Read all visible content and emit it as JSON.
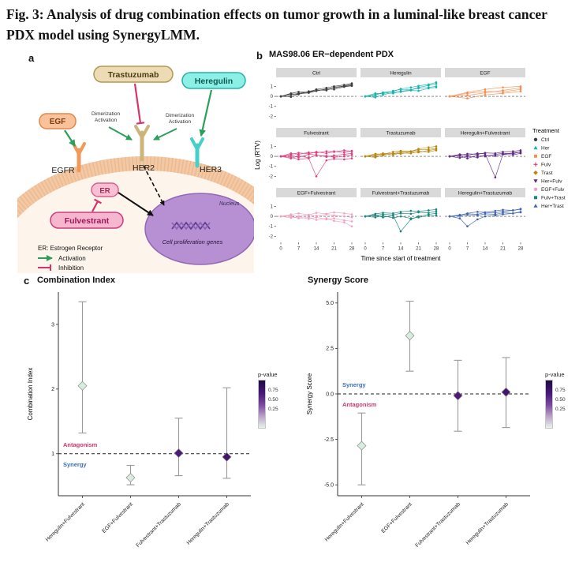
{
  "caption": "Fig. 3: Analysis of drug combination effects on tumor growth in a luminal-like breast cancer PDX model using SynergyLMM.",
  "panels": {
    "a_label": "a",
    "b_label": "b",
    "c_label": "c"
  },
  "panel_a": {
    "ligands": {
      "egf": "EGF",
      "trastuzumab": "Trastuzumab",
      "heregulin": "Heregulin",
      "er": "ER",
      "fulvestrant": "Fulvestrant"
    },
    "receptors": {
      "egfr": "EGFR",
      "her2": "HER2",
      "her3": "HER3"
    },
    "dimerization": "Dimerization",
    "activation": "Activation",
    "nucleus": "Nucleus",
    "genes": "Cell proliferation genes",
    "legend": {
      "er": "ER: Estrogen Receptor",
      "activation": "Activation",
      "inhibition": "Inhibition"
    }
  },
  "pvalue_legend": {
    "title": "p-value",
    "ticks": [
      "0.75",
      "0.50",
      "0.25"
    ],
    "gradient": [
      "#1f0a45",
      "#4a1a78",
      "#7c4ba0",
      "#b9a0ca",
      "#e8f3e9"
    ]
  },
  "chart_data": [
    {
      "type": "line",
      "title": "MAS98.06 ER−dependent PDX",
      "xlabel": "Time since start of treatment",
      "ylabel": "Log (RTV)",
      "xlim": [
        0,
        28
      ],
      "ylim": [
        -2.6,
        1.9
      ],
      "x_ticks": [
        0,
        7,
        14,
        21,
        28
      ],
      "y_ticks": [
        -2,
        -1,
        0,
        1
      ],
      "legend_title": "Treatment",
      "legend_items": [
        {
          "label": "Ctrl",
          "color": "#3d3d3d",
          "shape": "circle"
        },
        {
          "label": "Her",
          "color": "#12b5ae",
          "shape": "triangle"
        },
        {
          "label": "EGF",
          "color": "#f59053",
          "shape": "square"
        },
        {
          "label": "Fulv",
          "color": "#e23d7f",
          "shape": "plus"
        },
        {
          "label": "Trast",
          "color": "#b8860b",
          "shape": "diamond"
        },
        {
          "label": "Her+Fulv",
          "color": "#5f2a84",
          "shape": "triangle-down"
        },
        {
          "label": "EGF+Fulv",
          "color": "#f4a0c0",
          "shape": "circle"
        },
        {
          "label": "Fulv+Trast",
          "color": "#17877b",
          "shape": "square"
        },
        {
          "label": "Her+Trast",
          "color": "#3e66b0",
          "shape": "triangle"
        }
      ],
      "facets": [
        {
          "name": "Ctrl",
          "color": "#3d3d3d",
          "x": [
            0,
            4,
            7,
            11,
            14,
            18,
            21,
            25,
            28
          ],
          "series": [
            [
              0,
              0.15,
              0.3,
              0.45,
              0.55,
              0.7,
              0.85,
              1.0,
              1.1
            ],
            [
              0,
              0.25,
              0.2,
              0.5,
              0.65,
              0.6,
              0.9,
              1.05,
              1.2
            ],
            [
              0,
              -0.05,
              0.25,
              0.35,
              0.55,
              0.75,
              0.7,
              0.95,
              1.05
            ],
            [
              0,
              0.3,
              0.45,
              0.4,
              0.7,
              0.85,
              1.0,
              1.15,
              1.3
            ]
          ]
        },
        {
          "name": "Heregulin",
          "color": "#12b5ae",
          "x": [
            0,
            4,
            7,
            11,
            14,
            18,
            21,
            25,
            28
          ],
          "series": [
            [
              0,
              0.2,
              0.35,
              0.3,
              0.5,
              0.65,
              0.8,
              0.9,
              1.0
            ],
            [
              0,
              -0.1,
              0.15,
              0.4,
              0.45,
              0.6,
              0.55,
              0.8,
              0.9
            ],
            [
              0,
              0.3,
              0.25,
              0.55,
              0.7,
              0.65,
              0.9,
              1.1,
              1.25
            ],
            [
              0,
              0.1,
              0.4,
              0.5,
              0.75,
              0.9,
              1.05,
              1.2,
              1.4
            ]
          ]
        },
        {
          "name": "EGF",
          "color": "#f59053",
          "x": [
            0,
            7,
            14,
            21,
            28
          ],
          "series": [
            [
              0,
              0.3,
              0.5,
              0.45,
              0.7
            ],
            [
              0,
              0.1,
              0.35,
              0.6,
              0.85
            ],
            [
              0,
              -0.2,
              0.15,
              0.3,
              0.5
            ],
            [
              0,
              0.4,
              0.7,
              0.9,
              1.0
            ]
          ]
        },
        {
          "name": "Fulvestrant",
          "color": "#e23d7f",
          "x": [
            0,
            4,
            7,
            11,
            14,
            18,
            21,
            25,
            28
          ],
          "series": [
            [
              0,
              0.1,
              -0.1,
              0.2,
              0.15,
              -0.05,
              0.1,
              0.2,
              0.3
            ],
            [
              0,
              -0.2,
              0.05,
              -0.15,
              0.1,
              0.05,
              -0.1,
              0.0,
              0.15
            ],
            [
              0,
              0.3,
              0.2,
              0.4,
              0.35,
              0.5,
              0.45,
              0.6,
              0.5
            ],
            [
              0,
              -0.1,
              -0.3,
              -0.2,
              -2.0,
              -0.4,
              -0.25,
              -0.3,
              -0.2
            ],
            [
              0,
              0.2,
              0.35,
              0.25,
              0.45,
              0.3,
              0.5,
              0.4,
              0.55
            ]
          ]
        },
        {
          "name": "Trastuzumab",
          "color": "#b8860b",
          "x": [
            0,
            4,
            7,
            11,
            14,
            18,
            21,
            25,
            28
          ],
          "series": [
            [
              0,
              0.15,
              0.3,
              0.25,
              0.45,
              0.5,
              0.65,
              0.7,
              0.8
            ],
            [
              0,
              -0.1,
              0.1,
              0.3,
              0.25,
              0.45,
              0.4,
              0.6,
              0.7
            ],
            [
              0,
              0.25,
              0.2,
              0.45,
              0.55,
              0.5,
              0.75,
              0.9,
              1.0
            ],
            [
              0,
              0.05,
              0.2,
              0.15,
              0.35,
              0.3,
              0.5,
              0.45,
              0.6
            ]
          ]
        },
        {
          "name": "Heregulin+Fulvestrant",
          "color": "#5f2a84",
          "x": [
            0,
            4,
            7,
            11,
            14,
            18,
            21,
            25,
            28
          ],
          "series": [
            [
              0,
              0.1,
              0.25,
              0.2,
              0.35,
              0.3,
              0.45,
              0.5,
              0.6
            ],
            [
              0,
              -0.15,
              0.0,
              -0.1,
              0.1,
              0.05,
              0.2,
              0.15,
              0.3
            ],
            [
              0,
              0.2,
              0.1,
              0.3,
              0.25,
              -2.1,
              0.2,
              0.35,
              0.4
            ],
            [
              0,
              0.05,
              -0.2,
              0.1,
              0.0,
              0.2,
              0.3,
              0.25,
              0.45
            ]
          ]
        },
        {
          "name": "EGF+Fulvestrant",
          "color": "#f4a0c0",
          "x": [
            0,
            4,
            7,
            11,
            14,
            18,
            21,
            25,
            28
          ],
          "series": [
            [
              0,
              0.1,
              0.0,
              0.15,
              0.05,
              0.2,
              0.1,
              0.0,
              -0.1
            ],
            [
              0,
              -0.15,
              -0.05,
              -0.25,
              -0.1,
              -0.3,
              -0.2,
              -0.4,
              -0.5
            ],
            [
              0,
              0.2,
              0.3,
              0.15,
              0.35,
              0.25,
              0.4,
              0.3,
              0.2
            ],
            [
              0,
              0.0,
              -0.2,
              -0.1,
              -0.35,
              -0.2,
              -0.45,
              -0.6,
              -1.0
            ]
          ]
        },
        {
          "name": "Fulvestrant+Trastuzumab",
          "color": "#17877b",
          "x": [
            0,
            4,
            7,
            11,
            14,
            18,
            21,
            25,
            28
          ],
          "series": [
            [
              0,
              0.1,
              0.2,
              0.15,
              0.3,
              0.25,
              0.4,
              0.35,
              0.5
            ],
            [
              0,
              -0.1,
              0.05,
              -0.15,
              0.0,
              -0.2,
              -0.1,
              0.05,
              0.1
            ],
            [
              0,
              0.15,
              -0.1,
              0.1,
              -1.5,
              -0.3,
              0.0,
              0.2,
              0.3
            ],
            [
              0,
              0.25,
              0.35,
              0.3,
              0.45,
              0.55,
              0.5,
              0.6,
              0.7
            ]
          ]
        },
        {
          "name": "Heregulin+Trastuzumab",
          "color": "#3e66b0",
          "x": [
            0,
            4,
            7,
            11,
            14,
            18,
            21,
            25,
            28
          ],
          "series": [
            [
              0,
              0.15,
              0.25,
              0.2,
              0.4,
              0.35,
              0.5,
              0.6,
              0.7
            ],
            [
              0,
              -0.2,
              -1.0,
              -0.3,
              0.0,
              0.1,
              0.2,
              0.3,
              0.4
            ],
            [
              0,
              0.1,
              0.3,
              0.45,
              0.4,
              0.55,
              0.65,
              0.6,
              0.75
            ],
            [
              0,
              0.05,
              0.15,
              0.1,
              0.25,
              0.2,
              0.35,
              0.3,
              0.45
            ]
          ]
        }
      ]
    },
    {
      "type": "scatter",
      "title": "Combination Index",
      "ylabel": "Combination Index",
      "ylim": [
        0.35,
        3.5
      ],
      "yticks": [
        1,
        2,
        3
      ],
      "ytick_labels": [
        "1",
        "2",
        "3"
      ],
      "ref_line": 1,
      "upper_label": {
        "text": "Antagonism",
        "color": "#d6336c"
      },
      "lower_label": {
        "text": "Synergy",
        "color": "#3a6fb5"
      },
      "categories": [
        "Heregulin+Fulvestrant",
        "EGF+Fulvestrant",
        "Fulvestrant+Trastuzumab",
        "Heregulin+Trastuzumab"
      ],
      "points": [
        {
          "value": 2.05,
          "lower": 1.32,
          "upper": 3.35,
          "p_color": "#d9ecdf"
        },
        {
          "value": 0.63,
          "lower": 0.52,
          "upper": 0.82,
          "p_color": "#d9ecdf"
        },
        {
          "value": 1.01,
          "lower": 0.66,
          "upper": 1.55,
          "p_color": "#4d1a7a"
        },
        {
          "value": 0.95,
          "lower": 0.62,
          "upper": 2.02,
          "p_color": "#45156e"
        }
      ]
    },
    {
      "type": "scatter",
      "title": "Synergy Score",
      "ylabel": "Synergy Score",
      "ylim": [
        -5.6,
        5.6
      ],
      "yticks": [
        -5,
        -2.5,
        0,
        2.5,
        5
      ],
      "ytick_labels": [
        "-5.0",
        "-2.5",
        "0.0",
        "2.5",
        "5.0"
      ],
      "ref_line": 0,
      "upper_label": {
        "text": "Synergy",
        "color": "#3a6fb5"
      },
      "lower_label": {
        "text": "Antagonism",
        "color": "#d6336c"
      },
      "categories": [
        "Heregulin+Fulvestrant",
        "EGF+Fulvestrant",
        "Fulvestrant+Trastuzumab",
        "Heregulin+Trastuzumab"
      ],
      "points": [
        {
          "value": -2.85,
          "lower": -5.0,
          "upper": -1.05,
          "p_color": "#d9ecdf"
        },
        {
          "value": 3.2,
          "lower": 1.25,
          "upper": 5.1,
          "p_color": "#d9ecdf"
        },
        {
          "value": -0.1,
          "lower": -2.05,
          "upper": 1.85,
          "p_color": "#4d1a7a"
        },
        {
          "value": 0.1,
          "lower": -1.85,
          "upper": 2.0,
          "p_color": "#45156e"
        }
      ]
    }
  ]
}
